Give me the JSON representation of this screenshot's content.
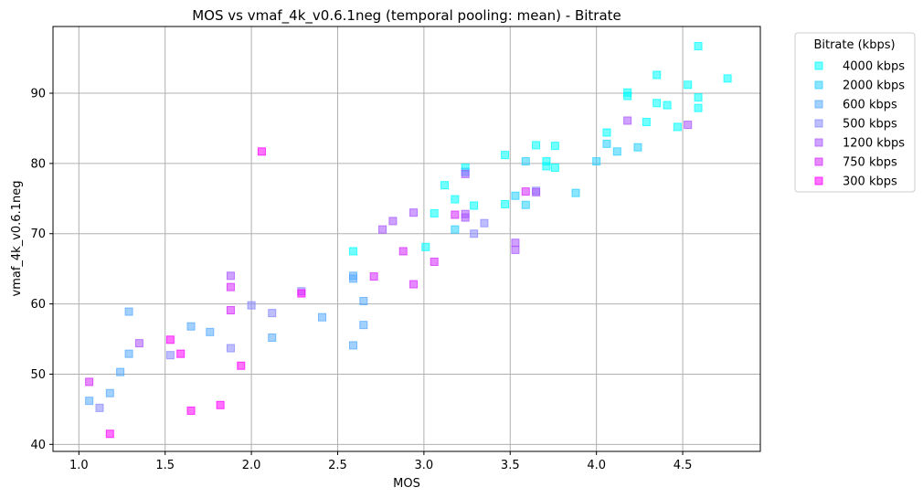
{
  "chart_data": {
    "type": "scatter",
    "title": "MOS vs vmaf_4k_v0.6.1neg (temporal pooling: mean) - Bitrate",
    "xlabel": "MOS",
    "ylabel": "vmaf_4k_v0.6.1neg",
    "xlim": [
      0.85,
      4.95
    ],
    "ylim": [
      39,
      99.5
    ],
    "xticks": [
      "1.0",
      "1.5",
      "2.0",
      "2.5",
      "3.0",
      "3.5",
      "4.0",
      "4.5"
    ],
    "xtick_values": [
      1.0,
      1.5,
      2.0,
      2.5,
      3.0,
      3.5,
      4.0,
      4.5
    ],
    "yticks": [
      "40",
      "50",
      "60",
      "70",
      "80",
      "90"
    ],
    "ytick_values": [
      40,
      50,
      60,
      70,
      80,
      90
    ],
    "grid": true,
    "marker": "square",
    "legend": {
      "title": "Bitrate (kbps)",
      "placement": "outside-right-top"
    },
    "series": [
      {
        "name": "4000 kbps",
        "color": "#00ffff",
        "points": [
          [
            2.59,
            67.5
          ],
          [
            3.01,
            68.1
          ],
          [
            3.06,
            72.9
          ],
          [
            3.12,
            76.9
          ],
          [
            3.18,
            74.9
          ],
          [
            3.24,
            79.4
          ],
          [
            3.29,
            74.0
          ],
          [
            3.47,
            74.2
          ],
          [
            3.47,
            81.2
          ],
          [
            3.65,
            82.6
          ],
          [
            3.71,
            80.3
          ],
          [
            3.71,
            79.6
          ],
          [
            3.76,
            79.4
          ],
          [
            3.76,
            82.5
          ],
          [
            4.06,
            84.4
          ],
          [
            4.18,
            89.6
          ],
          [
            4.29,
            85.9
          ],
          [
            4.35,
            88.6
          ],
          [
            4.35,
            92.6
          ],
          [
            4.41,
            88.3
          ],
          [
            4.47,
            85.2
          ],
          [
            4.53,
            91.2
          ],
          [
            4.59,
            89.4
          ],
          [
            4.59,
            87.9
          ],
          [
            4.59,
            96.7
          ],
          [
            4.76,
            92.1
          ],
          [
            4.18,
            90.1
          ]
        ]
      },
      {
        "name": "2000 kbps",
        "color": "#2acfff",
        "points": [
          [
            3.18,
            70.6
          ],
          [
            3.24,
            78.8
          ],
          [
            3.53,
            75.4
          ],
          [
            3.59,
            80.3
          ],
          [
            3.59,
            74.1
          ],
          [
            3.88,
            75.8
          ],
          [
            4.0,
            80.3
          ],
          [
            4.06,
            82.8
          ],
          [
            4.12,
            81.7
          ],
          [
            4.24,
            82.3
          ]
        ]
      },
      {
        "name": "600 kbps",
        "color": "#55aaff",
        "points": [
          [
            1.06,
            46.2
          ],
          [
            1.18,
            47.3
          ],
          [
            1.24,
            50.3
          ],
          [
            1.29,
            52.9
          ],
          [
            1.29,
            58.9
          ],
          [
            1.65,
            56.8
          ],
          [
            1.76,
            56.0
          ],
          [
            2.12,
            55.2
          ],
          [
            2.41,
            58.1
          ],
          [
            2.59,
            54.1
          ],
          [
            2.59,
            64.0
          ],
          [
            2.59,
            63.6
          ],
          [
            2.65,
            57.0
          ],
          [
            2.65,
            60.4
          ]
        ]
      },
      {
        "name": "500 kbps",
        "color": "#8888ff",
        "points": [
          [
            1.12,
            45.2
          ],
          [
            1.53,
            52.7
          ],
          [
            1.88,
            53.7
          ],
          [
            2.0,
            59.8
          ],
          [
            2.12,
            58.7
          ],
          [
            2.29,
            61.8
          ],
          [
            3.29,
            70.0
          ],
          [
            3.35,
            71.5
          ],
          [
            3.65,
            76.1
          ]
        ]
      },
      {
        "name": "1200 kbps",
        "color": "#aa55ff",
        "points": [
          [
            1.35,
            54.4
          ],
          [
            1.88,
            64.0
          ],
          [
            2.76,
            70.6
          ],
          [
            2.82,
            71.8
          ],
          [
            2.94,
            73.0
          ],
          [
            3.24,
            72.8
          ],
          [
            3.24,
            72.3
          ],
          [
            3.24,
            78.5
          ],
          [
            3.53,
            68.7
          ],
          [
            3.53,
            67.7
          ],
          [
            3.65,
            75.9
          ],
          [
            4.18,
            86.1
          ],
          [
            4.53,
            85.5
          ]
        ]
      },
      {
        "name": "750 kbps",
        "color": "#d52aff",
        "points": [
          [
            1.06,
            48.9
          ],
          [
            1.88,
            62.4
          ],
          [
            1.88,
            59.1
          ],
          [
            2.71,
            63.9
          ],
          [
            2.88,
            67.5
          ],
          [
            2.94,
            62.8
          ],
          [
            3.06,
            66.0
          ],
          [
            3.18,
            72.7
          ],
          [
            3.59,
            76.0
          ]
        ]
      },
      {
        "name": "300 kbps",
        "color": "#ff00ff",
        "points": [
          [
            1.18,
            41.5
          ],
          [
            1.53,
            54.9
          ],
          [
            1.59,
            52.9
          ],
          [
            1.65,
            44.8
          ],
          [
            1.82,
            45.6
          ],
          [
            1.94,
            51.2
          ],
          [
            2.06,
            81.7
          ],
          [
            2.29,
            61.5
          ]
        ]
      }
    ]
  }
}
